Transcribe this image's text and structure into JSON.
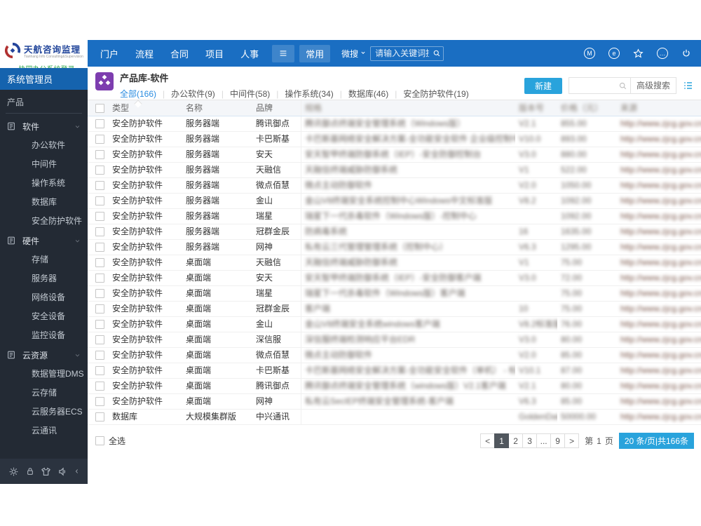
{
  "topbar": {
    "logo": {
      "title": "天航咨询监理",
      "tagline": "Tianhang Info Consulting&Supervision",
      "login": "· 协同办公系统登录"
    },
    "menu": [
      "门户",
      "流程",
      "合同",
      "项目",
      "人事"
    ],
    "boxed_menu": "常用",
    "search": {
      "prefix": "微搜",
      "placeholder": "请输入关键词搜索"
    },
    "right_icons": [
      {
        "name": "m-circle-icon",
        "glyph": "M"
      },
      {
        "name": "message-circle-icon",
        "glyph": "e"
      },
      {
        "name": "star-icon",
        "icon": "star"
      },
      {
        "name": "more-circle-icon",
        "glyph": "…"
      },
      {
        "name": "power-icon",
        "icon": "power"
      }
    ]
  },
  "sidebar": {
    "role": "系统管理员",
    "section": "产品",
    "groups": [
      {
        "label": "软件",
        "items": [
          "办公软件",
          "中间件",
          "操作系统",
          "数据库",
          "安全防护软件"
        ]
      },
      {
        "label": "硬件",
        "items": [
          "存储",
          "服务器",
          "网络设备",
          "安全设备",
          "监控设备"
        ]
      },
      {
        "label": "云资源",
        "items": [
          "数据管理DMS",
          "云存储",
          "云服务器ECS",
          "云通讯"
        ]
      }
    ],
    "bottom_icons": [
      "gear-icon",
      "lock-icon",
      "shirt-icon",
      "speaker-icon"
    ]
  },
  "content": {
    "title": "产品库-软件",
    "tabs": [
      {
        "label": "全部(166)",
        "active": true
      },
      {
        "label": "办公软件(9)"
      },
      {
        "label": "中间件(58)"
      },
      {
        "label": "操作系统(34)"
      },
      {
        "label": "数据库(46)"
      },
      {
        "label": "安全防护软件(19)"
      }
    ],
    "toolbar": {
      "new_label": "新建",
      "advanced_label": "高级搜索"
    },
    "table": {
      "columns": [
        "类型",
        "名称",
        "品牌",
        "规格",
        "版本号",
        "价格（元）",
        "来源"
      ],
      "blurred_header_columns": [
        3,
        4,
        5,
        6
      ],
      "blurred_columns": [
        3,
        4,
        5,
        6
      ],
      "rows": [
        [
          "安全防护软件",
          "服务器端",
          "腾讯御点",
          "腾讯御点终端安全管理系统（Windows版）",
          "V2.1",
          "855.00",
          "http://www.zjcg.gov.cn/djg/"
        ],
        [
          "安全防护软件",
          "服务器端",
          "卡巴斯基",
          "卡巴斯基网络安全解决方案-全功能安全软件 企业级控制中心（获取...",
          "V10.0",
          "893.00",
          "http://www.zjcg.gov.cn/djg/"
        ],
        [
          "安全防护软件",
          "服务器端",
          "安天",
          "安天智甲终端防御系统（IEP）-安全防御控制台",
          "V3.0",
          "880.00",
          "http://www.zjcg.gov.cn/djg/"
        ],
        [
          "安全防护软件",
          "服务器端",
          "天融信",
          "天融信终端威胁防御系统",
          "V1",
          "522.00",
          "http://www.zjcg.gov.cn/djg/"
        ],
        [
          "安全防护软件",
          "服务器端",
          "微点佰慧",
          "微点主动防御软件",
          "V2.0",
          "1050.00",
          "http://www.zjcg.gov.cn/djg/"
        ],
        [
          "安全防护软件",
          "服务器端",
          "金山",
          "金山V8终端安全系统控制中心Windows中文标准版",
          "V8.2",
          "1092.00",
          "http://www.zjcg.gov.cn/djg/"
        ],
        [
          "安全防护软件",
          "服务器端",
          "瑞星",
          "瑞星下一代杀毒软件（Windows版）-控制中心",
          "",
          "1092.00",
          "http://www.zjcg.gov.cn/djg/"
        ],
        [
          "安全防护软件",
          "服务器端",
          "冠群金辰",
          "防病毒系统",
          "16",
          "1635.00",
          "http://www.zjcg.gov.cn/djg/"
        ],
        [
          "安全防护软件",
          "服务器端",
          "网神",
          "私有云三代管理管理系统（控制中心）",
          "V6.3",
          "1295.00",
          "http://www.zjcg.gov.cn/djg/"
        ],
        [
          "安全防护软件",
          "桌面端",
          "天融信",
          "天融信终端威胁防御系统",
          "V1",
          "75.00",
          "http://www.zjcg.gov.cn/djg/"
        ],
        [
          "安全防护软件",
          "桌面端",
          "安天",
          "安天智甲终端防御系统（IEP）-安全防御客户端",
          "V3.0",
          "72.00",
          "http://www.zjcg.gov.cn/djg/"
        ],
        [
          "安全防护软件",
          "桌面端",
          "瑞星",
          "瑞星下一代杀毒软件（Windows版）客户端",
          "",
          "75.00",
          "http://www.zjcg.gov.cn/djg/"
        ],
        [
          "安全防护软件",
          "桌面端",
          "冠群金辰",
          "客户端",
          "10",
          "75.00",
          "http://www.zjcg.gov.cn/djg/"
        ],
        [
          "安全防护软件",
          "桌面端",
          "金山",
          "金山V8终端安全系统windows客户端",
          "V8.2标准版",
          "76.00",
          "http://www.zjcg.gov.cn/djg/"
        ],
        [
          "安全防护软件",
          "桌面端",
          "深信服",
          "深信服终端检测响应平台EDR",
          "V3.0",
          "80.00",
          "http://www.zjcg.gov.cn/djg/"
        ],
        [
          "安全防护软件",
          "桌面端",
          "微点佰慧",
          "微点主动防御软件",
          "V2.0",
          "85.00",
          "http://www.zjcg.gov.cn/djg/"
        ],
        [
          "安全防护软件",
          "桌面端",
          "卡巴斯基",
          "卡巴斯基网络安全解决方案-全功能安全软件（单机） - 标...",
          "V10.1",
          "87.00",
          "http://www.zjcg.gov.cn/djg/"
        ],
        [
          "安全防护软件",
          "桌面端",
          "腾讯御点",
          "腾讯御点终端安全管理系统（windows版）V2.1客户端",
          "V2.1",
          "80.00",
          "http://www.zjcg.gov.cn/djg/"
        ],
        [
          "安全防护软件",
          "桌面端",
          "网神",
          "私有云SecIEP终端安全管理系统-客户端",
          "V6.3",
          "85.00",
          "http://www.zjcg.gov.cn/djg/"
        ],
        [
          "数据库",
          "大规模集群版",
          "中兴通讯",
          "",
          "GoldenData v...",
          "50000.00",
          "http://www.zjcg.gov.cn/djg/"
        ]
      ]
    },
    "select_all": "全选",
    "pagination": {
      "prev": "<",
      "pages": [
        "1",
        "2",
        "3",
        "...",
        "9"
      ],
      "active": "1",
      "next": ">",
      "jump_prefix": "第",
      "jump_page": "1",
      "jump_suffix": "页",
      "summary": "20 条/页|共166条"
    }
  },
  "colors": {
    "topbar_blue": "#1a6ec2",
    "accent_blue": "#29a3dc",
    "sidebar_dark": "#232a34",
    "sidebar_header_blue": "#1563ae",
    "tab_active_blue": "#2a8ce0",
    "app_icon_purple": "#7d3daf"
  }
}
